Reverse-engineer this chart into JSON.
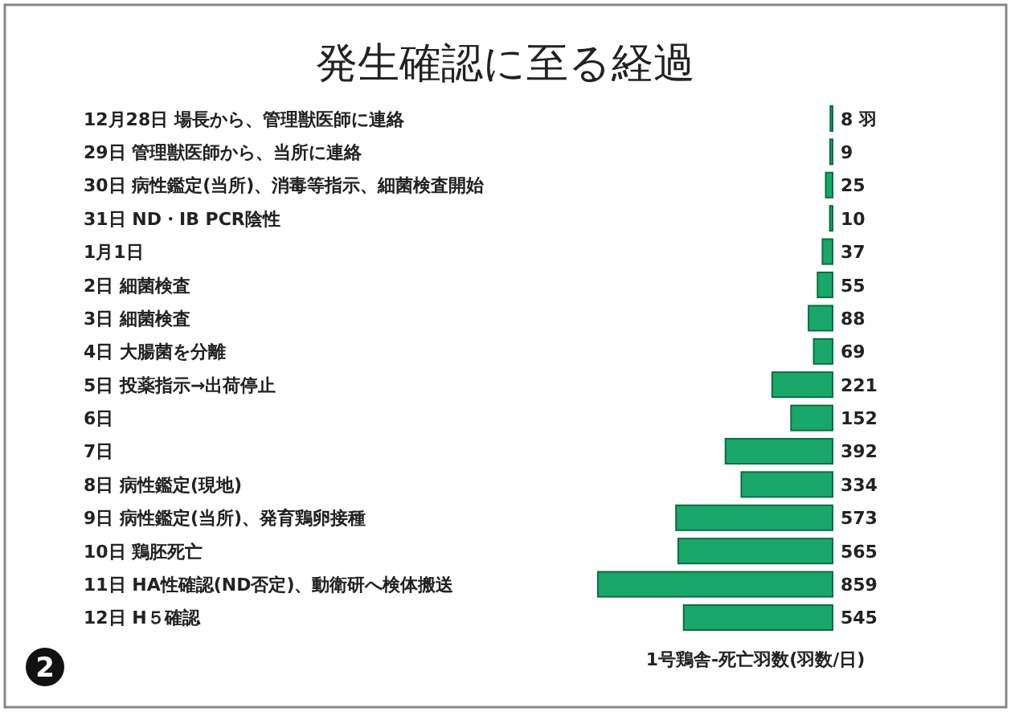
{
  "chart_data": {
    "type": "bar",
    "orientation": "horizontal",
    "title": "発生確認に至る経過",
    "categories": [
      "12月28日 場長から、管理獣医師に連絡",
      "29日 管理獣医師から、当所に連絡",
      "30日 病性鑑定(当所)、消毒等指示、細菌検査開始",
      "31日 ND・IB  PCR陰性",
      "1月1日",
      "2日 細菌検査",
      "3日 細菌検査",
      "4日 大腸菌を分離",
      "5日 投薬指示→出荷停止",
      "6日",
      "7日",
      "8日 病性鑑定(現地)",
      "9日 病性鑑定(当所)、発育鶏卵接種",
      "10日 鶏胚死亡",
      "11日 HA性確認(ND否定)、動衛研へ検体搬送",
      "12日 H５確認"
    ],
    "values": [
      8,
      9,
      25,
      10,
      37,
      55,
      88,
      69,
      221,
      152,
      392,
      334,
      573,
      565,
      859,
      545
    ],
    "value_labels": [
      "8 羽",
      "9",
      "25",
      "10",
      "37",
      "55",
      "88",
      "69",
      "221",
      "152",
      "392",
      "334",
      "573",
      "565",
      "859",
      "545"
    ],
    "color": "#1aa86a",
    "xlabel": "1号鶏舎-死亡羽数(羽数/日)",
    "annotations": [
      "2"
    ]
  }
}
